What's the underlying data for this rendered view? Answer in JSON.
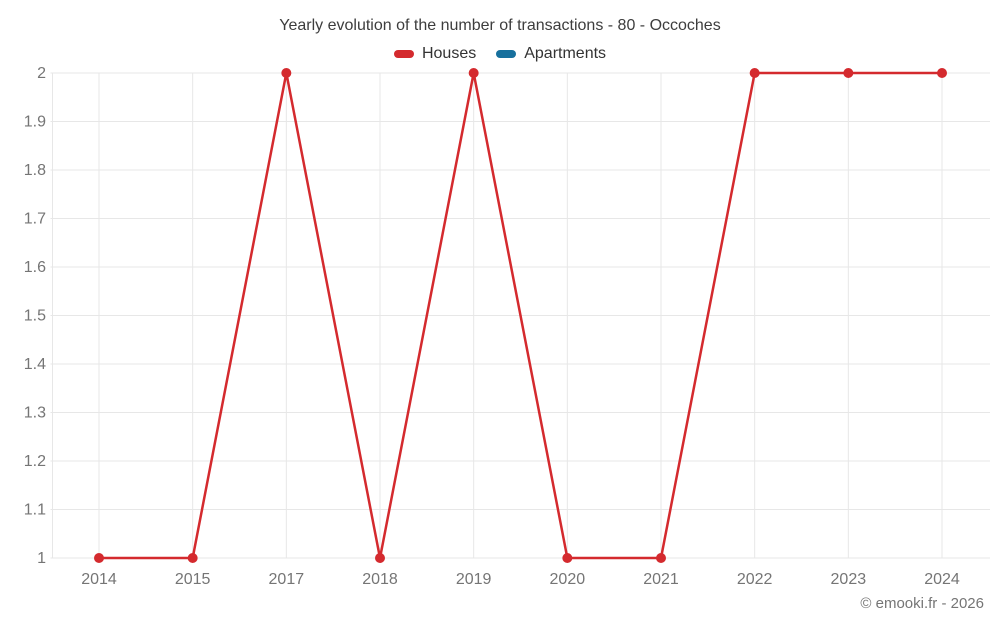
{
  "chart": {
    "title": "Yearly evolution of the number of transactions - 80 - Occoches",
    "footer": "© emooki.fr - 2026"
  },
  "chart_data": {
    "type": "line",
    "title": "Yearly evolution of the number of transactions - 80 - Occoches",
    "categories": [
      "2014",
      "2015",
      "2017",
      "2018",
      "2019",
      "2020",
      "2021",
      "2022",
      "2023",
      "2024"
    ],
    "series": [
      {
        "name": "Houses",
        "color": "#d42a2e",
        "values": [
          1,
          1,
          2,
          1,
          2,
          1,
          1,
          2,
          2,
          2
        ]
      },
      {
        "name": "Apartments",
        "color": "#17709d",
        "values": []
      }
    ],
    "xlabel": "",
    "ylabel": "",
    "ylim": [
      1,
      2
    ],
    "yticks": [
      1,
      1.1,
      1.2,
      1.3,
      1.4,
      1.5,
      1.6,
      1.7,
      1.8,
      1.9,
      2
    ],
    "ytick_labels": [
      "1",
      "1.1",
      "1.2",
      "1.3",
      "1.4",
      "1.5",
      "1.6",
      "1.7",
      "1.8",
      "1.9",
      "2"
    ],
    "grid": true,
    "legend_position": "top",
    "marker": "circle"
  },
  "colors": {
    "grid": "#e7e7e7",
    "tick_label": "#757575",
    "title_text": "#3d3d3d",
    "legend_text": "#333333",
    "background": "#ffffff"
  }
}
